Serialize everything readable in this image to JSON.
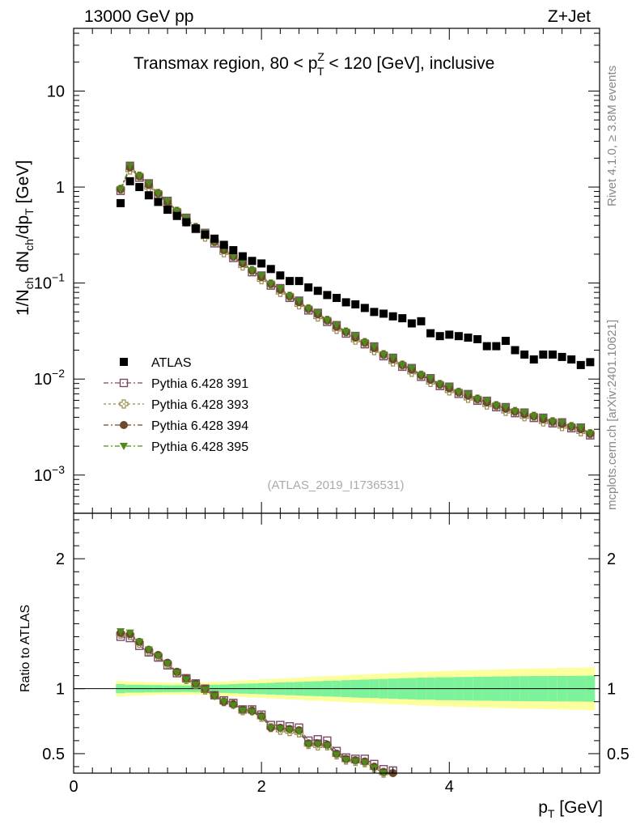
{
  "header": {
    "left": "13000 GeV pp",
    "right": "Z+Jet"
  },
  "side_labels": {
    "rivet": "Rivet 4.1.0, ≥ 3.8M events",
    "mcplots": "mcplots.cern.ch [arXiv:2401.10621]"
  },
  "chart_data": {
    "type": "scatter",
    "title_parts": {
      "pre": "Transmax region, 80 < p",
      "sup": "Z",
      "sub": "T",
      "post": " < 120 [GeV], inclusive"
    },
    "watermark": "(ATLAS_2019_I1736531)",
    "xlabel": {
      "main": "p",
      "sub": "T",
      "unit": " [GeV]"
    },
    "ylabel": {
      "main": "1/N",
      "sub1": "ch",
      "mid": " dN",
      "sub2": "ch",
      "mid2": "/dp",
      "sub3": "T",
      "unit": " [GeV]"
    },
    "ratio_ylabel": "Ratio to ATLAS",
    "xlim": [
      0,
      5.6
    ],
    "ylim": [
      0.0004,
      45
    ],
    "ratio_ylim": [
      0.35,
      2.35
    ],
    "x_ticks": [
      "0",
      "2",
      "4"
    ],
    "y_ticks": [
      {
        "mant": "10",
        "exp": "−3"
      },
      {
        "mant": "10",
        "exp": "−2"
      },
      {
        "mant": "10",
        "exp": "−1"
      },
      {
        "mant": "1",
        "exp": ""
      },
      {
        "mant": "10",
        "exp": ""
      }
    ],
    "ratio_ticks": [
      "0.5",
      "1",
      "2"
    ],
    "x": [
      0.5,
      0.6,
      0.7,
      0.8,
      0.9,
      1.0,
      1.1,
      1.2,
      1.3,
      1.4,
      1.5,
      1.6,
      1.7,
      1.8,
      1.9,
      2.0,
      2.1,
      2.2,
      2.3,
      2.4,
      2.5,
      2.6,
      2.7,
      2.8,
      2.9,
      3.0,
      3.1,
      3.2,
      3.3,
      3.4,
      3.5,
      3.6,
      3.7,
      3.8,
      3.9,
      4.0,
      4.1,
      4.2,
      4.3,
      4.4,
      4.5,
      4.6,
      4.7,
      4.8,
      4.9,
      5.0,
      5.1,
      5.2,
      5.3,
      5.4,
      5.5
    ],
    "atlas": [
      0.68,
      1.15,
      1.0,
      0.82,
      0.7,
      0.58,
      0.5,
      0.43,
      0.37,
      0.32,
      0.29,
      0.25,
      0.22,
      0.19,
      0.17,
      0.16,
      0.14,
      0.12,
      0.105,
      0.105,
      0.09,
      0.083,
      0.075,
      0.07,
      0.063,
      0.06,
      0.055,
      0.05,
      0.048,
      0.045,
      0.043,
      0.038,
      0.04,
      0.03,
      0.028,
      0.029,
      0.028,
      0.027,
      0.026,
      0.022,
      0.022,
      0.025,
      0.02,
      0.018,
      0.016,
      0.018,
      0.018,
      0.017,
      0.016,
      0.014,
      0.015
    ],
    "series": [
      {
        "name": "Pythia 6.428 391",
        "color": "#7b4b6a",
        "marker": "open-square",
        "ratio": [
          1.4,
          1.39,
          1.33,
          1.28,
          1.24,
          1.18,
          1.12,
          1.08,
          1.04,
          1.0,
          0.95,
          0.91,
          0.89,
          0.84,
          0.84,
          0.8,
          0.72,
          0.72,
          0.71,
          0.7,
          0.6,
          0.61,
          0.6,
          0.52,
          0.47,
          0.46,
          0.46,
          0.42,
          0.38,
          0.37
        ]
      },
      {
        "name": "Pythia 6.428 393",
        "color": "#9b8a4b",
        "marker": "open-cross",
        "ratio": [
          1.42,
          1.41,
          1.35,
          1.29,
          1.25,
          1.19,
          1.12,
          1.07,
          1.03,
          0.99,
          0.95,
          0.9,
          0.88,
          0.83,
          0.83,
          0.78,
          0.7,
          0.68,
          0.67,
          0.66,
          0.57,
          0.56,
          0.56,
          0.49,
          0.45,
          0.44,
          0.43,
          0.39,
          0.35,
          0.34
        ]
      },
      {
        "name": "Pythia 6.428 394",
        "color": "#6b4a2e",
        "marker": "filled-circle",
        "ratio": [
          1.43,
          1.42,
          1.36,
          1.3,
          1.26,
          1.2,
          1.13,
          1.08,
          1.04,
          1.0,
          0.95,
          0.9,
          0.88,
          0.84,
          0.83,
          0.79,
          0.7,
          0.7,
          0.69,
          0.68,
          0.58,
          0.58,
          0.57,
          0.5,
          0.46,
          0.45,
          0.44,
          0.4,
          0.36,
          0.35
        ]
      },
      {
        "name": "Pythia 6.428 395",
        "color": "#4f8a1f",
        "marker": "filled-triangle-down",
        "ratio": [
          1.44,
          1.43,
          1.36,
          1.3,
          1.25,
          1.19,
          1.12,
          1.07,
          1.03,
          0.99,
          0.94,
          0.9,
          0.87,
          0.83,
          0.82,
          0.78,
          0.7,
          0.69,
          0.68,
          0.67,
          0.57,
          0.57,
          0.56,
          0.49,
          0.45,
          0.44,
          0.43,
          0.39,
          0.35,
          0.34
        ]
      }
    ],
    "mc_main": {
      "x": [
        0.5,
        0.6,
        0.7,
        0.8,
        0.9,
        1.0,
        1.1,
        1.2,
        1.3,
        1.4,
        1.5,
        1.6,
        1.7,
        1.8,
        1.9,
        2.0,
        2.1,
        2.2,
        2.3,
        2.4,
        2.5,
        2.6,
        2.7,
        2.8,
        2.9,
        3.0,
        3.1,
        3.2,
        3.3,
        3.4,
        3.5,
        3.6,
        3.7,
        3.8,
        3.9,
        4.0,
        4.1,
        4.2,
        4.3,
        4.4,
        4.5,
        4.6,
        4.7,
        4.8,
        4.9,
        5.0,
        5.1,
        5.2,
        5.3,
        5.4,
        5.5
      ],
      "y": [
        0.95,
        1.6,
        1.3,
        1.05,
        0.86,
        0.69,
        0.56,
        0.46,
        0.38,
        0.32,
        0.27,
        0.22,
        0.19,
        0.16,
        0.135,
        0.115,
        0.098,
        0.085,
        0.073,
        0.063,
        0.054,
        0.047,
        0.041,
        0.035,
        0.031,
        0.027,
        0.024,
        0.021,
        0.018,
        0.016,
        0.014,
        0.0125,
        0.011,
        0.0098,
        0.0088,
        0.008,
        0.0073,
        0.0067,
        0.0062,
        0.0057,
        0.0053,
        0.0049,
        0.0046,
        0.0043,
        0.0041,
        0.0038,
        0.0036,
        0.0034,
        0.0032,
        0.003,
        0.0027
      ]
    },
    "band_stat": [
      0.035,
      0.03,
      0.03,
      0.028,
      0.028,
      0.026,
      0.026,
      0.025,
      0.026,
      0.028,
      0.03,
      0.032,
      0.035,
      0.038,
      0.04,
      0.042,
      0.045,
      0.048,
      0.05,
      0.052,
      0.055,
      0.057,
      0.06,
      0.062,
      0.065,
      0.068,
      0.07,
      0.072,
      0.075,
      0.077,
      0.08,
      0.082,
      0.085,
      0.085,
      0.088,
      0.088,
      0.09,
      0.09,
      0.092,
      0.092,
      0.094,
      0.094,
      0.096,
      0.096,
      0.097,
      0.097,
      0.098,
      0.098,
      0.098,
      0.099,
      0.1
    ],
    "band_tot": [
      0.06,
      0.055,
      0.052,
      0.05,
      0.048,
      0.047,
      0.046,
      0.046,
      0.047,
      0.05,
      0.053,
      0.056,
      0.06,
      0.064,
      0.067,
      0.07,
      0.074,
      0.078,
      0.082,
      0.085,
      0.09,
      0.093,
      0.097,
      0.1,
      0.104,
      0.108,
      0.11,
      0.113,
      0.117,
      0.12,
      0.123,
      0.126,
      0.13,
      0.132,
      0.135,
      0.137,
      0.14,
      0.142,
      0.144,
      0.146,
      0.148,
      0.15,
      0.152,
      0.154,
      0.155,
      0.157,
      0.158,
      0.16,
      0.161,
      0.162,
      0.165
    ],
    "legend_atlas": "ATLAS",
    "colors": {
      "band_inner": "#7cf29a",
      "band_outer": "#fbff9c",
      "atlas": "#000000"
    }
  }
}
